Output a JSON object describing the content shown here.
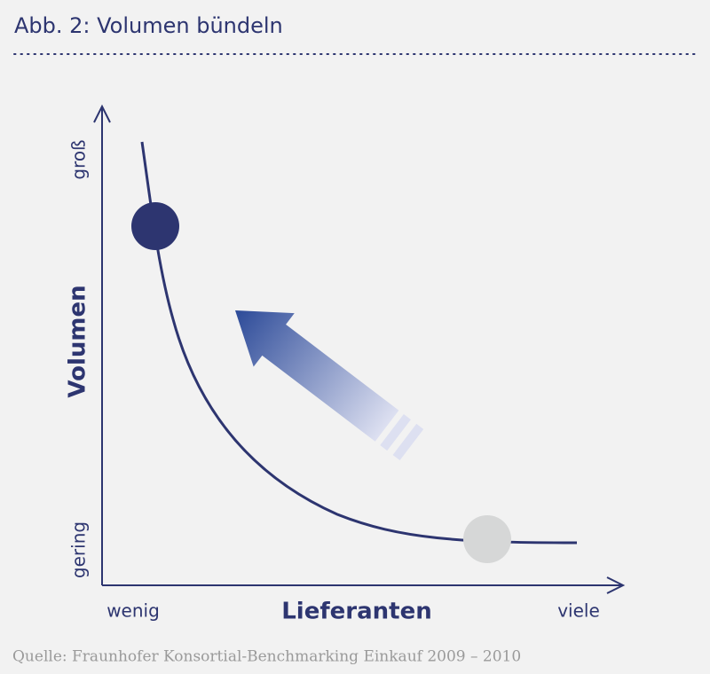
{
  "header": {
    "title": "Abb. 2: Volumen bündeln"
  },
  "y_axis": {
    "label": "Volumen",
    "high": "groß",
    "low": "gering"
  },
  "x_axis": {
    "label": "Lieferanten",
    "low": "wenig",
    "high": "viele"
  },
  "source": "Quelle: Fraunhofer Konsortial-Benchmarking Einkauf 2009 – 2010"
}
